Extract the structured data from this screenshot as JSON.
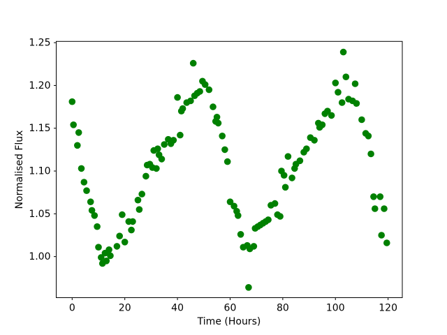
{
  "figure": {
    "background": "#ffffff"
  },
  "chart_data": {
    "type": "scatter",
    "title": "",
    "xlabel": "Time (Hours)",
    "ylabel": "Normalised Flux",
    "marker_color": "#008000",
    "axis_color": "#000000",
    "marker_size_px": 9.6,
    "grid": false,
    "legend": "none",
    "xlim": [
      -6.05,
      125.4
    ],
    "ylim": [
      0.952,
      1.2515
    ],
    "xticks": [
      {
        "value": 0,
        "label": "0"
      },
      {
        "value": 20,
        "label": "20"
      },
      {
        "value": 40,
        "label": "40"
      },
      {
        "value": 60,
        "label": "60"
      },
      {
        "value": 80,
        "label": "80"
      },
      {
        "value": 100,
        "label": "100"
      },
      {
        "value": 120,
        "label": "120"
      }
    ],
    "yticks": [
      {
        "value": 1.0,
        "label": "1.00"
      },
      {
        "value": 1.05,
        "label": "1.05"
      },
      {
        "value": 1.1,
        "label": "1.10"
      },
      {
        "value": 1.15,
        "label": "1.15"
      },
      {
        "value": 1.2,
        "label": "1.20"
      },
      {
        "value": 1.25,
        "label": "1.25"
      }
    ],
    "points": [
      [
        0,
        1.181
      ],
      [
        0.5,
        1.154
      ],
      [
        2,
        1.13
      ],
      [
        2.5,
        1.145
      ],
      [
        3.5,
        1.103
      ],
      [
        4.5,
        1.087
      ],
      [
        5.5,
        1.077
      ],
      [
        7,
        1.064
      ],
      [
        7.5,
        1.054
      ],
      [
        8.5,
        1.048
      ],
      [
        9.5,
        1.035
      ],
      [
        10,
        1.011
      ],
      [
        11,
        0.999
      ],
      [
        11.5,
        0.992
      ],
      [
        12.5,
        1.004
      ],
      [
        13,
        0.995
      ],
      [
        14,
        1.008
      ],
      [
        14.5,
        1.001
      ],
      [
        17,
        1.012
      ],
      [
        18,
        1.024
      ],
      [
        19,
        1.049
      ],
      [
        20,
        1.017
      ],
      [
        21.5,
        1.041
      ],
      [
        22.5,
        1.031
      ],
      [
        23,
        1.041
      ],
      [
        25,
        1.066
      ],
      [
        25.5,
        1.055
      ],
      [
        26.5,
        1.073
      ],
      [
        28,
        1.094
      ],
      [
        28.5,
        1.107
      ],
      [
        29.5,
        1.108
      ],
      [
        30.5,
        1.104
      ],
      [
        31,
        1.124
      ],
      [
        32,
        1.103
      ],
      [
        32.5,
        1.126
      ],
      [
        33,
        1.119
      ],
      [
        34,
        1.114
      ],
      [
        35,
        1.131
      ],
      [
        36.5,
        1.137
      ],
      [
        37.5,
        1.132
      ],
      [
        38.5,
        1.136
      ],
      [
        40,
        1.186
      ],
      [
        41,
        1.142
      ],
      [
        41.5,
        1.17
      ],
      [
        42,
        1.173
      ],
      [
        43.5,
        1.18
      ],
      [
        45,
        1.182
      ],
      [
        46,
        1.226
      ],
      [
        46.5,
        1.188
      ],
      [
        47.5,
        1.191
      ],
      [
        48.5,
        1.193
      ],
      [
        49.5,
        1.205
      ],
      [
        50.5,
        1.201
      ],
      [
        52,
        1.195
      ],
      [
        53.5,
        1.175
      ],
      [
        54.5,
        1.158
      ],
      [
        55,
        1.163
      ],
      [
        55.5,
        1.156
      ],
      [
        57,
        1.141
      ],
      [
        58,
        1.125
      ],
      [
        59,
        1.111
      ],
      [
        60,
        1.064
      ],
      [
        61.5,
        1.059
      ],
      [
        62.5,
        1.053
      ],
      [
        63,
        1.048
      ],
      [
        64,
        1.026
      ],
      [
        65,
        1.011
      ],
      [
        66.5,
        1.013
      ],
      [
        67,
        0.964
      ],
      [
        67.5,
        1.009
      ],
      [
        69,
        1.012
      ],
      [
        69.5,
        1.033
      ],
      [
        70.5,
        1.035
      ],
      [
        71.5,
        1.037
      ],
      [
        72.5,
        1.039
      ],
      [
        73.5,
        1.041
      ],
      [
        74.5,
        1.043
      ],
      [
        75.5,
        1.06
      ],
      [
        77,
        1.062
      ],
      [
        78,
        1.049
      ],
      [
        79,
        1.047
      ],
      [
        79.5,
        1.1
      ],
      [
        80.5,
        1.095
      ],
      [
        81,
        1.081
      ],
      [
        82,
        1.117
      ],
      [
        83.5,
        1.092
      ],
      [
        84.5,
        1.103
      ],
      [
        85,
        1.108
      ],
      [
        86.5,
        1.112
      ],
      [
        88,
        1.122
      ],
      [
        89,
        1.126
      ],
      [
        90.5,
        1.139
      ],
      [
        92,
        1.136
      ],
      [
        93.5,
        1.156
      ],
      [
        94,
        1.151
      ],
      [
        95,
        1.154
      ],
      [
        96,
        1.167
      ],
      [
        97,
        1.17
      ],
      [
        98.5,
        1.165
      ],
      [
        100,
        1.203
      ],
      [
        101,
        1.192
      ],
      [
        102.5,
        1.18
      ],
      [
        103,
        1.239
      ],
      [
        104,
        1.21
      ],
      [
        105,
        1.184
      ],
      [
        106.5,
        1.182
      ],
      [
        107.5,
        1.202
      ],
      [
        108,
        1.179
      ],
      [
        110,
        1.16
      ],
      [
        111.5,
        1.144
      ],
      [
        112.5,
        1.141
      ],
      [
        113.5,
        1.12
      ],
      [
        114.5,
        1.07
      ],
      [
        117,
        1.07
      ],
      [
        115,
        1.056
      ],
      [
        118.5,
        1.056
      ],
      [
        117.5,
        1.025
      ],
      [
        119.5,
        1.016
      ]
    ]
  }
}
